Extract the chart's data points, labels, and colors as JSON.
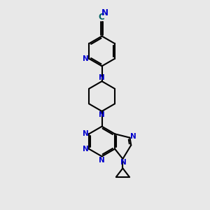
{
  "bg_color": "#e8e8e8",
  "bond_color": "#000000",
  "atom_color": "#0000cc",
  "cn_c_color": "#006060",
  "line_width": 1.5,
  "figsize": [
    3.0,
    3.0
  ],
  "dpi": 100,
  "xlim": [
    0,
    10
  ],
  "ylim": [
    0,
    10
  ],
  "font_size": 7.5
}
